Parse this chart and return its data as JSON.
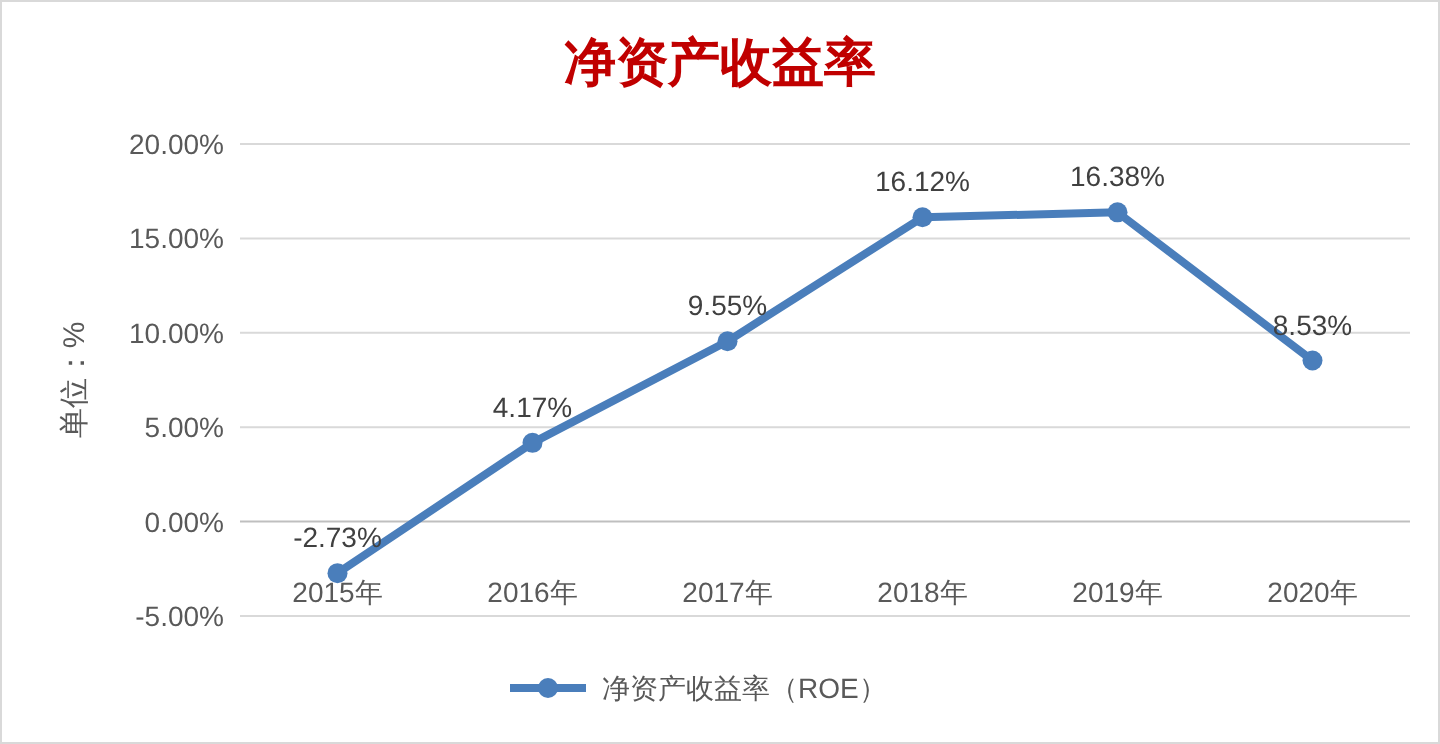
{
  "chart_data": {
    "type": "line",
    "title": "净资产收益率",
    "ylabel": "单位：%",
    "categories": [
      "2015年",
      "2016年",
      "2017年",
      "2018年",
      "2019年",
      "2020年"
    ],
    "series": [
      {
        "name": "净资产收益率（ROE）",
        "color": "#4a7ebb",
        "values": [
          -2.73,
          4.17,
          9.55,
          16.12,
          16.38,
          8.53
        ],
        "value_labels": [
          "-2.73%",
          "4.17%",
          "9.55%",
          "16.12%",
          "16.38%",
          "8.53%"
        ]
      }
    ],
    "ylim": [
      -5,
      20
    ],
    "yticks": [
      {
        "value": -5,
        "label": "-5.00%"
      },
      {
        "value": 0,
        "label": "0.00%"
      },
      {
        "value": 5,
        "label": "5.00%"
      },
      {
        "value": 10,
        "label": "10.00%"
      },
      {
        "value": 15,
        "label": "15.00%"
      },
      {
        "value": 20,
        "label": "20.00%"
      }
    ],
    "grid": "y",
    "legend": "bottom",
    "marker": "circle",
    "line_style": "solid"
  }
}
